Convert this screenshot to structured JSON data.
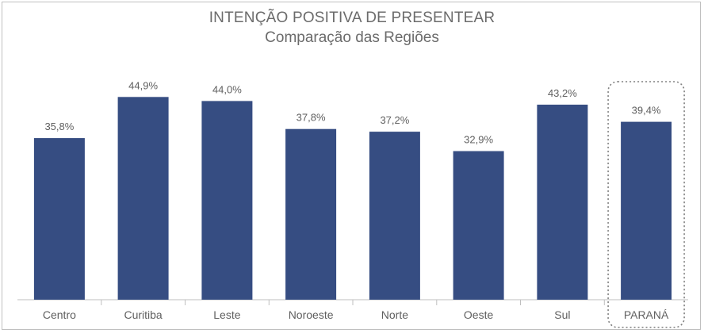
{
  "chart_data": {
    "type": "bar",
    "title": "INTENÇÃO POSITIVA DE PRESENTEAR",
    "subtitle": "Comparação das Regiões",
    "categories": [
      "Centro",
      "Curitiba",
      "Leste",
      "Noroeste",
      "Norte",
      "Oeste",
      "Sul",
      "PARANÁ"
    ],
    "values": [
      35.8,
      44.9,
      44.0,
      37.8,
      37.2,
      32.9,
      43.2,
      39.4
    ],
    "data_labels": [
      "35,8%",
      "44,9%",
      "44,0%",
      "37,8%",
      "37,2%",
      "32,9%",
      "43,2%",
      "39,4%"
    ],
    "ylim": [
      0,
      50
    ],
    "y_axis_visible": false,
    "grid": false,
    "highlighted_category": "PARANÁ",
    "colors": {
      "bar": "#364d82",
      "text": "#5f5f5f",
      "axis": "#bfbfbf",
      "highlight_border": "#7f7f7f"
    }
  }
}
